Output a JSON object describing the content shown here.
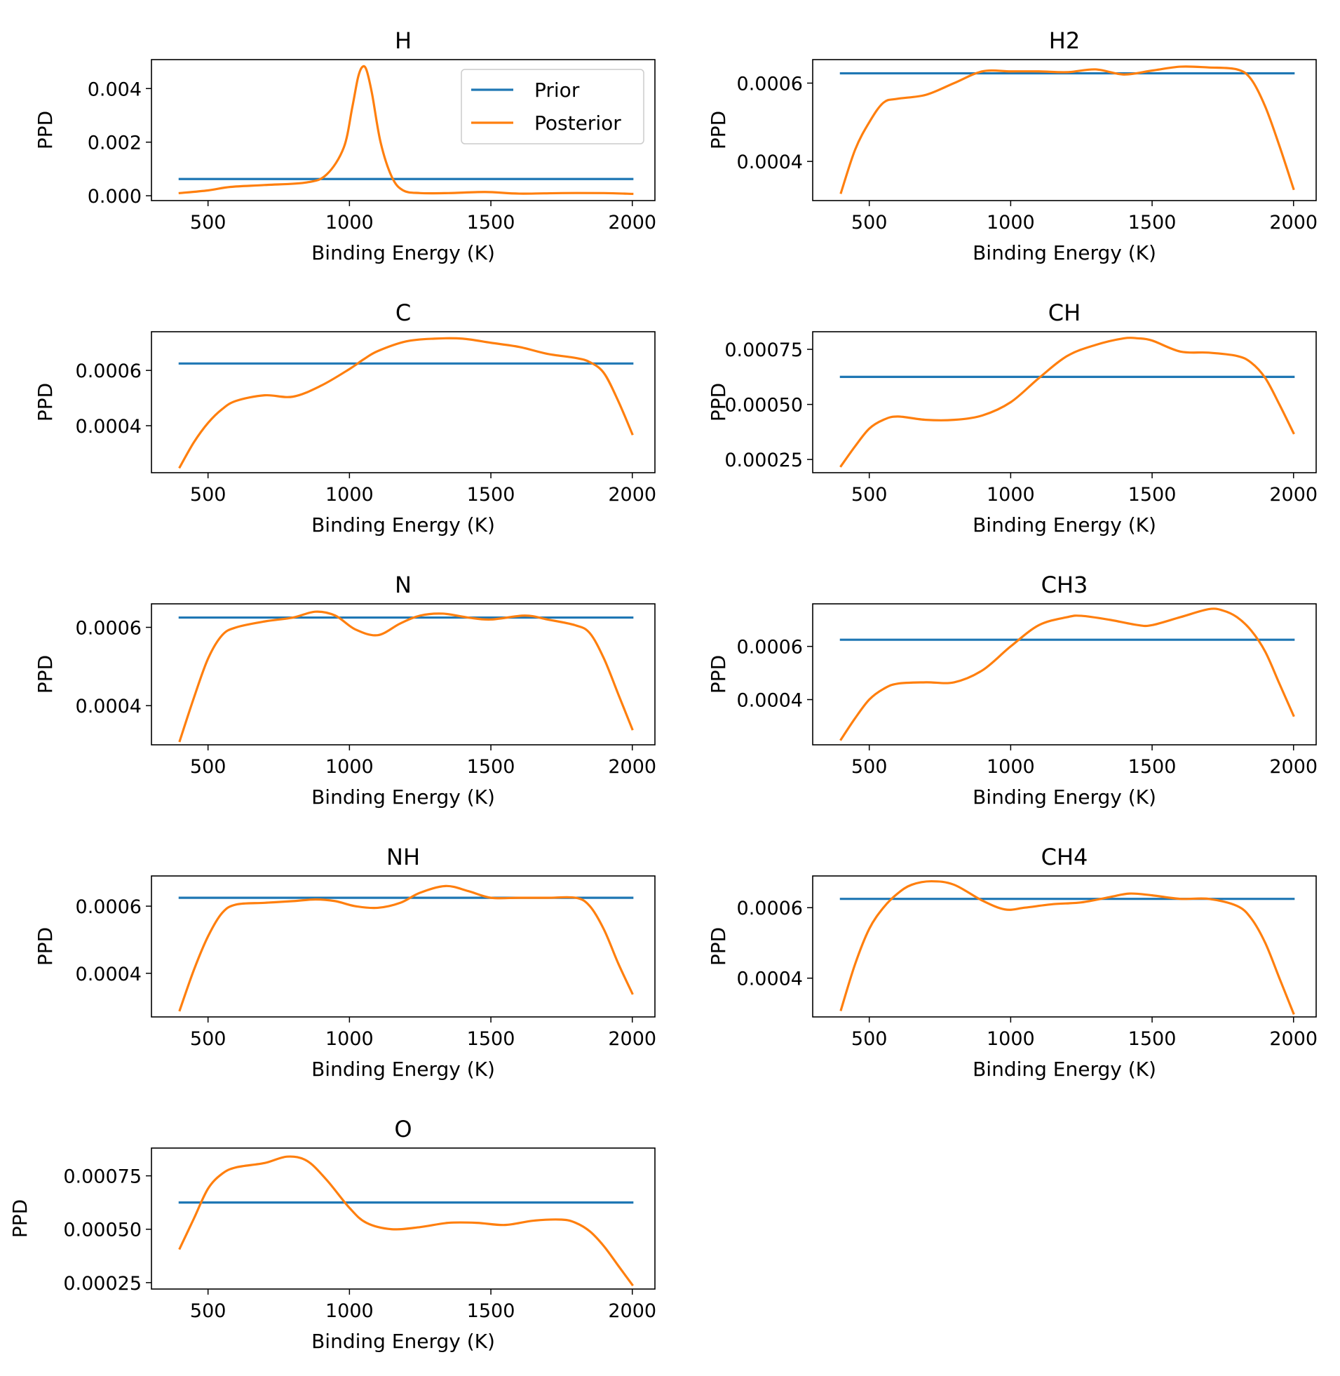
{
  "figure": {
    "xlabel": "Binding Energy (K)",
    "ylabel": "PPD",
    "legend": {
      "entries": [
        "Prior",
        "Posterior"
      ],
      "placement": "upper-right of first panel"
    },
    "colors": {
      "prior": "#1f77b4",
      "posterior": "#ff7f0e",
      "axes": "#000000",
      "background": "#ffffff"
    }
  },
  "chart_data": [
    {
      "type": "line",
      "title": "H",
      "xlabel": "Binding Energy (K)",
      "ylabel": "PPD",
      "xlim": [
        300,
        2080
      ],
      "ylim": [
        -0.00018,
        0.00508
      ],
      "xticks": [
        500,
        1000,
        1500,
        2000
      ],
      "xtick_labels": [
        "500",
        "1000",
        "1500",
        "2000"
      ],
      "yticks": [
        0,
        0.002,
        0.004
      ],
      "ytick_labels": [
        "0.000",
        "0.002",
        "0.004"
      ],
      "legend": [
        "Prior",
        "Posterior"
      ],
      "series": [
        {
          "name": "Prior",
          "x": [
            400,
            2000
          ],
          "y": [
            0.000625,
            0.000625
          ]
        },
        {
          "name": "Posterior",
          "x": [
            400,
            500,
            580,
            700,
            850,
            920,
            980,
            1010,
            1030,
            1045,
            1060,
            1080,
            1110,
            1150,
            1190,
            1250,
            1350,
            1480,
            1600,
            1750,
            1900,
            2000
          ],
          "y": [
            0.0001,
            0.0002,
            0.00033,
            0.0004,
            0.0005,
            0.0008,
            0.0018,
            0.0033,
            0.0044,
            0.0048,
            0.0047,
            0.0038,
            0.002,
            0.0007,
            0.0002,
            0.0001,
            0.0001,
            0.00014,
            8e-05,
            0.0001,
            0.0001,
            7e-05
          ]
        }
      ]
    },
    {
      "type": "line",
      "title": "H2",
      "xlabel": "Binding Energy (K)",
      "ylabel": "PPD",
      "xlim": [
        300,
        2080
      ],
      "ylim": [
        0.0003,
        0.00066
      ],
      "xticks": [
        500,
        1000,
        1500,
        2000
      ],
      "xtick_labels": [
        "500",
        "1000",
        "1500",
        "2000"
      ],
      "yticks": [
        0.0004,
        0.0006
      ],
      "ytick_labels": [
        "0.0004",
        "0.0006"
      ],
      "series": [
        {
          "name": "Prior",
          "x": [
            400,
            2000
          ],
          "y": [
            0.000625,
            0.000625
          ]
        },
        {
          "name": "Posterior",
          "x": [
            400,
            450,
            500,
            550,
            600,
            700,
            800,
            900,
            1000,
            1100,
            1200,
            1300,
            1400,
            1500,
            1600,
            1700,
            1800,
            1850,
            1900,
            1950,
            2000
          ],
          "y": [
            0.00032,
            0.00043,
            0.0005,
            0.00055,
            0.00056,
            0.00057,
            0.0006,
            0.00063,
            0.00063,
            0.00063,
            0.000628,
            0.000635,
            0.000622,
            0.000632,
            0.000642,
            0.00064,
            0.000635,
            0.00061,
            0.00054,
            0.00044,
            0.00033
          ]
        }
      ]
    },
    {
      "type": "line",
      "title": "C",
      "xlabel": "Binding Energy (K)",
      "ylabel": "PPD",
      "xlim": [
        300,
        2080
      ],
      "ylim": [
        0.00023,
        0.00074
      ],
      "xticks": [
        500,
        1000,
        1500,
        2000
      ],
      "xtick_labels": [
        "500",
        "1000",
        "1500",
        "2000"
      ],
      "yticks": [
        0.0004,
        0.0006
      ],
      "ytick_labels": [
        "0.0004",
        "0.0006"
      ],
      "series": [
        {
          "name": "Prior",
          "x": [
            400,
            2000
          ],
          "y": [
            0.000625,
            0.000625
          ]
        },
        {
          "name": "Posterior",
          "x": [
            400,
            450,
            500,
            550,
            600,
            700,
            800,
            900,
            1000,
            1050,
            1100,
            1200,
            1300,
            1400,
            1500,
            1600,
            1700,
            1800,
            1850,
            1900,
            1950,
            2000
          ],
          "y": [
            0.00025,
            0.00034,
            0.00041,
            0.00046,
            0.00049,
            0.00051,
            0.000505,
            0.000545,
            0.000605,
            0.00064,
            0.00067,
            0.000705,
            0.000715,
            0.000715,
            0.0007,
            0.000685,
            0.00066,
            0.000645,
            0.00063,
            0.00059,
            0.00049,
            0.00037
          ]
        }
      ]
    },
    {
      "type": "line",
      "title": "CH",
      "xlabel": "Binding Energy (K)",
      "ylabel": "PPD",
      "xlim": [
        300,
        2080
      ],
      "ylim": [
        0.00019,
        0.00083
      ],
      "xticks": [
        500,
        1000,
        1500,
        2000
      ],
      "xtick_labels": [
        "500",
        "1000",
        "1500",
        "2000"
      ],
      "yticks": [
        0.00025,
        0.0005,
        0.00075
      ],
      "ytick_labels": [
        "0.00025",
        "0.00050",
        "0.00075"
      ],
      "series": [
        {
          "name": "Prior",
          "x": [
            400,
            2000
          ],
          "y": [
            0.000625,
            0.000625
          ]
        },
        {
          "name": "Posterior",
          "x": [
            400,
            450,
            500,
            550,
            600,
            700,
            800,
            900,
            1000,
            1100,
            1200,
            1300,
            1400,
            1450,
            1500,
            1600,
            1700,
            1800,
            1850,
            1900,
            1950,
            2000
          ],
          "y": [
            0.00022,
            0.00031,
            0.00039,
            0.00043,
            0.000445,
            0.00043,
            0.00043,
            0.00045,
            0.00051,
            0.00062,
            0.00072,
            0.00077,
            0.0008,
            0.0008,
            0.00079,
            0.00074,
            0.000735,
            0.00072,
            0.00069,
            0.00062,
            0.0005,
            0.00037
          ]
        }
      ]
    },
    {
      "type": "line",
      "title": "N",
      "xlabel": "Binding Energy (K)",
      "ylabel": "PPD",
      "xlim": [
        300,
        2080
      ],
      "ylim": [
        0.0003,
        0.00066
      ],
      "xticks": [
        500,
        1000,
        1500,
        2000
      ],
      "xtick_labels": [
        "500",
        "1000",
        "1500",
        "2000"
      ],
      "yticks": [
        0.0004,
        0.0006
      ],
      "ytick_labels": [
        "0.0004",
        "0.0006"
      ],
      "series": [
        {
          "name": "Prior",
          "x": [
            400,
            2000
          ],
          "y": [
            0.000625,
            0.000625
          ]
        },
        {
          "name": "Posterior",
          "x": [
            400,
            450,
            500,
            550,
            600,
            700,
            800,
            880,
            950,
            1020,
            1100,
            1180,
            1250,
            1330,
            1420,
            1500,
            1620,
            1700,
            1800,
            1850,
            1900,
            1950,
            2000
          ],
          "y": [
            0.00031,
            0.00042,
            0.00052,
            0.00058,
            0.0006,
            0.000615,
            0.000625,
            0.00064,
            0.00063,
            0.000595,
            0.00058,
            0.00061,
            0.00063,
            0.000635,
            0.000625,
            0.00062,
            0.00063,
            0.00062,
            0.000605,
            0.000585,
            0.00052,
            0.00043,
            0.00034
          ]
        }
      ]
    },
    {
      "type": "line",
      "title": "CH3",
      "xlabel": "Binding Energy (K)",
      "ylabel": "PPD",
      "xlim": [
        300,
        2080
      ],
      "ylim": [
        0.00023,
        0.00076
      ],
      "xticks": [
        500,
        1000,
        1500,
        2000
      ],
      "xtick_labels": [
        "500",
        "1000",
        "1500",
        "2000"
      ],
      "yticks": [
        0.0004,
        0.0006
      ],
      "ytick_labels": [
        "0.0004",
        "0.0006"
      ],
      "series": [
        {
          "name": "Prior",
          "x": [
            400,
            2000
          ],
          "y": [
            0.000625,
            0.000625
          ]
        },
        {
          "name": "Posterior",
          "x": [
            400,
            450,
            500,
            550,
            600,
            700,
            800,
            900,
            1000,
            1100,
            1200,
            1250,
            1350,
            1450,
            1500,
            1600,
            1700,
            1750,
            1800,
            1850,
            1900,
            1950,
            2000
          ],
          "y": [
            0.00025,
            0.00033,
            0.0004,
            0.00044,
            0.00046,
            0.000465,
            0.000465,
            0.00051,
            0.0006,
            0.00068,
            0.00071,
            0.000715,
            0.0007,
            0.00068,
            0.00068,
            0.00071,
            0.00074,
            0.000735,
            0.00071,
            0.00066,
            0.00058,
            0.00046,
            0.00034
          ]
        }
      ]
    },
    {
      "type": "line",
      "title": "NH",
      "xlabel": "Binding Energy (K)",
      "ylabel": "PPD",
      "xlim": [
        300,
        2080
      ],
      "ylim": [
        0.00027,
        0.00069
      ],
      "xticks": [
        500,
        1000,
        1500,
        2000
      ],
      "xtick_labels": [
        "500",
        "1000",
        "1500",
        "2000"
      ],
      "yticks": [
        0.0004,
        0.0006
      ],
      "ytick_labels": [
        "0.0004",
        "0.0006"
      ],
      "series": [
        {
          "name": "Prior",
          "x": [
            400,
            2000
          ],
          "y": [
            0.000625,
            0.000625
          ]
        },
        {
          "name": "Posterior",
          "x": [
            400,
            450,
            500,
            550,
            600,
            700,
            800,
            880,
            950,
            1020,
            1100,
            1180,
            1250,
            1340,
            1420,
            1500,
            1600,
            1700,
            1800,
            1850,
            1900,
            1950,
            2000
          ],
          "y": [
            0.00029,
            0.00041,
            0.00051,
            0.00058,
            0.000605,
            0.00061,
            0.000615,
            0.00062,
            0.000615,
            0.0006,
            0.000595,
            0.00061,
            0.00064,
            0.00066,
            0.000645,
            0.000625,
            0.000625,
            0.000625,
            0.000625,
            0.0006,
            0.00053,
            0.00043,
            0.00034
          ]
        }
      ]
    },
    {
      "type": "line",
      "title": "CH4",
      "xlabel": "Binding Energy (K)",
      "ylabel": "PPD",
      "xlim": [
        300,
        2080
      ],
      "ylim": [
        0.00029,
        0.00069
      ],
      "xticks": [
        500,
        1000,
        1500,
        2000
      ],
      "xtick_labels": [
        "500",
        "1000",
        "1500",
        "2000"
      ],
      "yticks": [
        0.0004,
        0.0006
      ],
      "ytick_labels": [
        "0.0004",
        "0.0006"
      ],
      "series": [
        {
          "name": "Prior",
          "x": [
            400,
            2000
          ],
          "y": [
            0.000625,
            0.000625
          ]
        },
        {
          "name": "Posterior",
          "x": [
            400,
            450,
            500,
            550,
            600,
            650,
            720,
            800,
            900,
            980,
            1050,
            1150,
            1250,
            1350,
            1420,
            1500,
            1600,
            1700,
            1800,
            1850,
            1900,
            1950,
            2000
          ],
          "y": [
            0.00031,
            0.00044,
            0.00054,
            0.0006,
            0.00064,
            0.000665,
            0.000675,
            0.000665,
            0.00062,
            0.000595,
            0.0006,
            0.00061,
            0.000615,
            0.00063,
            0.00064,
            0.000635,
            0.000625,
            0.000625,
            0.000605,
            0.00057,
            0.0005,
            0.0004,
            0.0003
          ]
        }
      ]
    },
    {
      "type": "line",
      "title": "O",
      "xlabel": "Binding Energy (K)",
      "ylabel": "PPD",
      "xlim": [
        300,
        2080
      ],
      "ylim": [
        0.00022,
        0.00088
      ],
      "xticks": [
        500,
        1000,
        1500,
        2000
      ],
      "xtick_labels": [
        "500",
        "1000",
        "1500",
        "2000"
      ],
      "yticks": [
        0.00025,
        0.0005,
        0.00075
      ],
      "ytick_labels": [
        "0.00025",
        "0.00050",
        "0.00075"
      ],
      "series": [
        {
          "name": "Prior",
          "x": [
            400,
            2000
          ],
          "y": [
            0.000625,
            0.000625
          ]
        },
        {
          "name": "Posterior",
          "x": [
            400,
            450,
            500,
            550,
            600,
            700,
            780,
            850,
            920,
            1000,
            1060,
            1150,
            1250,
            1350,
            1450,
            1550,
            1650,
            1750,
            1800,
            1850,
            1900,
            1950,
            2000
          ],
          "y": [
            0.00041,
            0.00055,
            0.00069,
            0.00076,
            0.00079,
            0.00081,
            0.00084,
            0.00082,
            0.00073,
            0.0006,
            0.00053,
            0.0005,
            0.00051,
            0.00053,
            0.00053,
            0.00052,
            0.00054,
            0.000545,
            0.00053,
            0.00049,
            0.00042,
            0.00033,
            0.00024
          ]
        }
      ]
    }
  ]
}
